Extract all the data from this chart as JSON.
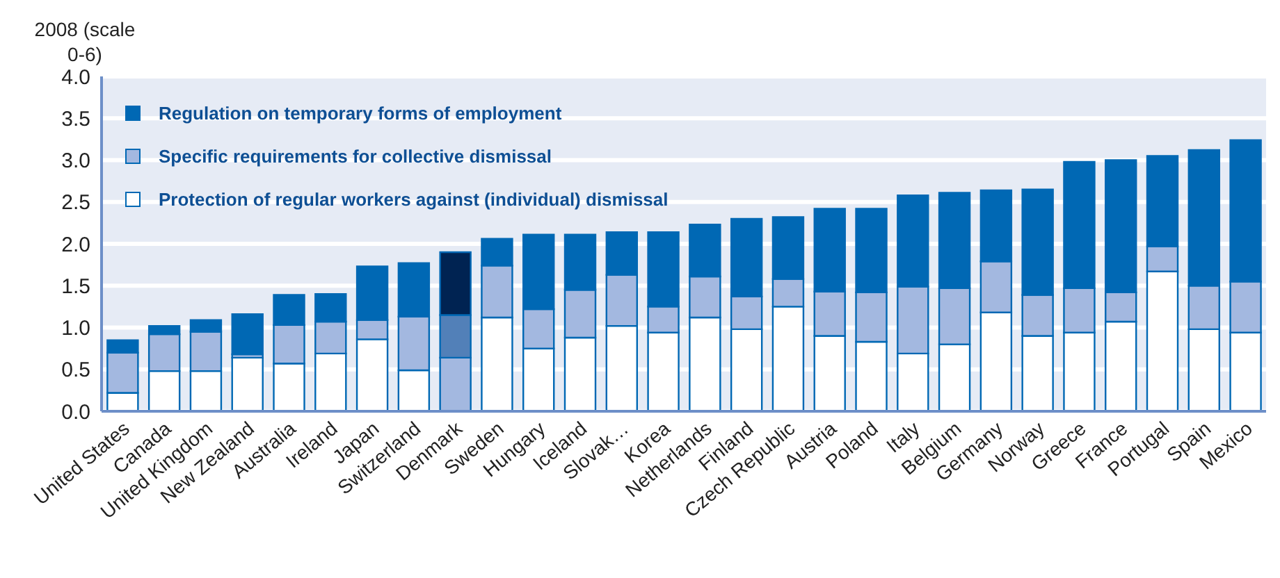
{
  "chart_data": {
    "type": "bar",
    "ylabel": "2008 (scale 0-6)",
    "categories": [
      "United States",
      "Canada",
      "United Kingdom",
      "New Zealand",
      "Australia",
      "Ireland",
      "Japan",
      "Switzerland",
      "Denmark",
      "Sweden",
      "Hungary",
      "Iceland",
      "Slovak…",
      "Korea",
      "Netherlands",
      "Finland",
      "Czech Republic",
      "Austria",
      "Poland",
      "Italy",
      "Belgium",
      "Germany",
      "Norway",
      "Greece",
      "France",
      "Portugal",
      "Spain",
      "Mexico"
    ],
    "stacked": true,
    "ylim": [
      0,
      4
    ],
    "yticks": [
      {
        "value": 0,
        "label": "0.0"
      },
      {
        "value": 0.5,
        "label": "0.5"
      },
      {
        "value": 1,
        "label": "1.0"
      },
      {
        "value": 1.5,
        "label": "1.5"
      },
      {
        "value": 2,
        "label": "2.0"
      },
      {
        "value": 2.5,
        "label": "2.5"
      },
      {
        "value": 3,
        "label": "3.0"
      },
      {
        "value": 3.5,
        "label": "3.5"
      },
      {
        "value": 4,
        "label": "4.0"
      }
    ],
    "grid": "y",
    "legend": "top left",
    "series": [
      {
        "name": "Protection of regular workers against (individual) dismissal",
        "color": "#ffffff",
        "colors": [
          "#ffffff",
          "#ffffff",
          "#ffffff",
          "#ffffff",
          "#ffffff",
          "#ffffff",
          "#ffffff",
          "#ffffff",
          "#a3b8e0",
          "#ffffff",
          "#ffffff",
          "#ffffff",
          "#ffffff",
          "#ffffff",
          "#ffffff",
          "#ffffff",
          "#ffffff",
          "#ffffff",
          "#ffffff",
          "#ffffff",
          "#ffffff",
          "#ffffff",
          "#ffffff",
          "#ffffff",
          "#ffffff",
          "#ffffff",
          "#ffffff",
          "#ffffff"
        ],
        "values": [
          0.22,
          0.48,
          0.48,
          0.64,
          0.57,
          0.69,
          0.86,
          0.49,
          0.64,
          1.12,
          0.75,
          0.88,
          1.02,
          0.94,
          1.12,
          0.98,
          1.25,
          0.9,
          0.83,
          0.69,
          0.8,
          1.18,
          0.9,
          0.94,
          1.07,
          1.67,
          0.98,
          0.94
        ]
      },
      {
        "name": "Specific requirements for collective dismissal",
        "color": "#a3b8e0",
        "colors": [
          "#a3b8e0",
          "#a3b8e0",
          "#a3b8e0",
          "#a3b8e0",
          "#a3b8e0",
          "#a3b8e0",
          "#a3b8e0",
          "#a3b8e0",
          "#5280b8",
          "#a3b8e0",
          "#a3b8e0",
          "#a3b8e0",
          "#a3b8e0",
          "#a3b8e0",
          "#a3b8e0",
          "#a3b8e0",
          "#a3b8e0",
          "#a3b8e0",
          "#a3b8e0",
          "#a3b8e0",
          "#a3b8e0",
          "#a3b8e0",
          "#a3b8e0",
          "#a3b8e0",
          "#a3b8e0",
          "#a3b8e0",
          "#a3b8e0",
          "#a3b8e0"
        ],
        "values": [
          0.48,
          0.44,
          0.47,
          0.04,
          0.46,
          0.38,
          0.23,
          0.64,
          0.51,
          0.62,
          0.47,
          0.57,
          0.61,
          0.31,
          0.49,
          0.39,
          0.33,
          0.53,
          0.59,
          0.8,
          0.67,
          0.61,
          0.49,
          0.53,
          0.35,
          0.3,
          0.52,
          0.61
        ]
      },
      {
        "name": "Regulation on temporary forms of employment",
        "color": "#0068b4",
        "colors": [
          "#0068b4",
          "#0068b4",
          "#0068b4",
          "#0068b4",
          "#0068b4",
          "#0068b4",
          "#0068b4",
          "#0068b4",
          "#002352",
          "#0068b4",
          "#0068b4",
          "#0068b4",
          "#0068b4",
          "#0068b4",
          "#0068b4",
          "#0068b4",
          "#0068b4",
          "#0068b4",
          "#0068b4",
          "#0068b4",
          "#0068b4",
          "#0068b4",
          "#0068b4",
          "#0068b4",
          "#0068b4",
          "#0068b4",
          "#0068b4",
          "#0068b4"
        ],
        "values": [
          0.15,
          0.1,
          0.14,
          0.48,
          0.36,
          0.33,
          0.64,
          0.64,
          0.75,
          0.32,
          0.89,
          0.66,
          0.51,
          0.89,
          0.62,
          0.93,
          0.74,
          0.99,
          1.0,
          1.09,
          1.14,
          0.85,
          1.26,
          1.51,
          1.58,
          1.08,
          1.62,
          1.69
        ]
      }
    ]
  }
}
